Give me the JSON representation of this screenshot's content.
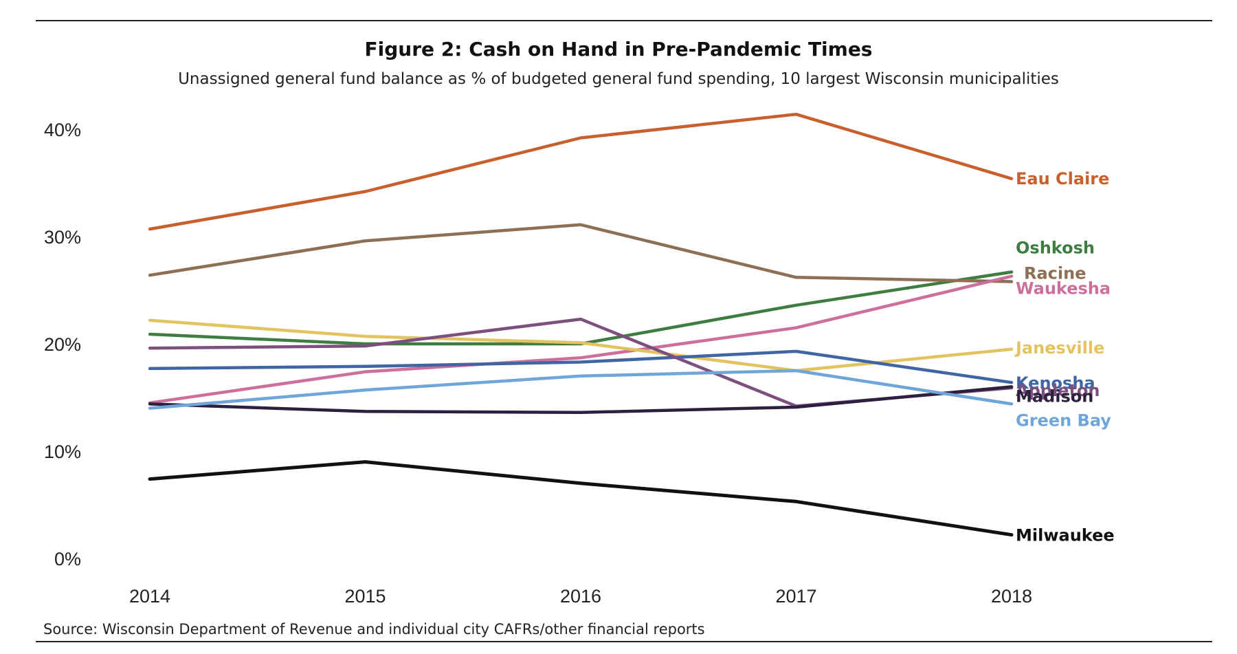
{
  "figure": {
    "title": "Figure 2: Cash on Hand in Pre-Pandemic Times",
    "subtitle": "Unassigned general fund balance as % of budgeted general fund spending, 10 largest Wisconsin municipalities",
    "source": "Source: Wisconsin Department of Revenue and individual city CAFRs/other financial reports"
  },
  "chart_data": {
    "type": "line",
    "title": "Figure 2: Cash on Hand in Pre-Pandemic Times",
    "subtitle": "Unassigned general fund balance as % of budgeted general fund spending, 10 largest Wisconsin municipalities",
    "xlabel": "",
    "ylabel": "",
    "x": [
      2014,
      2015,
      2016,
      2017,
      2018
    ],
    "x_tick_labels": [
      "2014",
      "2015",
      "2016",
      "2017",
      "2018"
    ],
    "y_tick_labels": [
      "0%",
      "10%",
      "20%",
      "30%",
      "40%"
    ],
    "y_ticks": [
      0,
      10,
      20,
      30,
      40
    ],
    "ylim": [
      0,
      40
    ],
    "y_unit": "%",
    "grid": false,
    "legend": "direct labels at right end of each line",
    "series": [
      {
        "name": "Eau Claire",
        "color": "#c8602e",
        "values": [
          30.7,
          34.2,
          39.2,
          41.4,
          35.4
        ]
      },
      {
        "name": "Oshkosh",
        "color": "#3e7d3f",
        "values": [
          20.9,
          20.0,
          20.0,
          23.6,
          26.7
        ]
      },
      {
        "name": "Racine",
        "color": "#8c6f55",
        "values": [
          26.4,
          29.6,
          31.1,
          26.2,
          25.8
        ]
      },
      {
        "name": "Waukesha",
        "color": "#cc6f9c",
        "values": [
          14.5,
          17.4,
          18.7,
          21.5,
          26.3
        ]
      },
      {
        "name": "Janesville",
        "color": "#e2c360",
        "values": [
          22.2,
          20.7,
          20.1,
          17.5,
          19.5
        ]
      },
      {
        "name": "Kenosha",
        "color": "#3f66a3",
        "values": [
          17.7,
          17.9,
          18.3,
          19.3,
          16.4
        ]
      },
      {
        "name": "Appleton",
        "color": "#7d4f7f",
        "values": [
          19.6,
          19.8,
          22.3,
          14.2,
          15.9
        ]
      },
      {
        "name": "Madison",
        "color": "#2d203f",
        "values": [
          14.4,
          13.7,
          13.6,
          14.1,
          16.0
        ]
      },
      {
        "name": "Green Bay",
        "color": "#6fa5d8",
        "values": [
          14.0,
          15.7,
          17.0,
          17.5,
          14.4
        ]
      },
      {
        "name": "Milwaukee",
        "color": "#111111",
        "values": [
          7.4,
          9.0,
          7.0,
          5.3,
          2.2
        ]
      }
    ]
  }
}
